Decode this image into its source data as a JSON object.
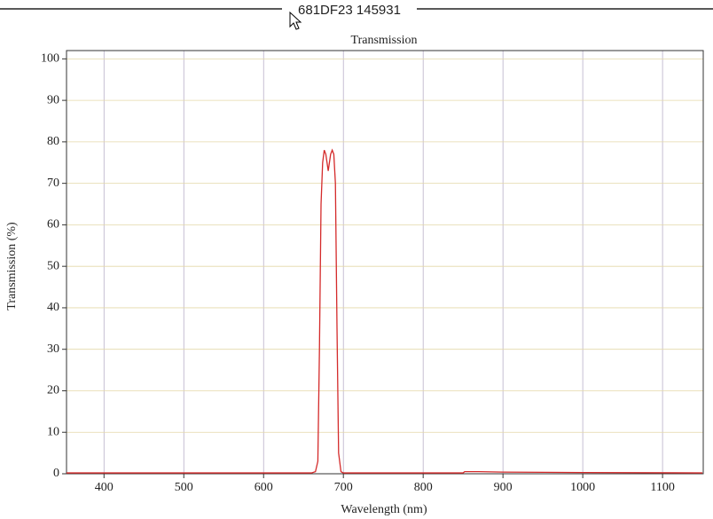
{
  "header": {
    "title": "681DF23 145931"
  },
  "chart_data": {
    "type": "line",
    "title": "Transmission",
    "x_label": "Wavelength (nm)",
    "y_label": "Transmission (%)",
    "x": [
      353,
      660,
      665,
      668,
      670,
      672,
      674,
      676,
      678,
      681,
      684,
      686,
      688,
      690,
      692,
      694,
      697,
      700,
      850,
      852,
      870,
      900,
      1000,
      1150
    ],
    "values": [
      0.2,
      0.2,
      0.5,
      3,
      30,
      65,
      75,
      78,
      77,
      73,
      77,
      78,
      77,
      70,
      35,
      5,
      0.5,
      0.2,
      0.2,
      0.5,
      0.5,
      0.4,
      0.3,
      0.2
    ],
    "color": "#d42a2a",
    "xlim": [
      353,
      1151
    ],
    "ylim": [
      0,
      102
    ],
    "xticks": [
      400,
      500,
      600,
      700,
      800,
      900,
      1000,
      1100
    ],
    "yticks": [
      0,
      10,
      20,
      30,
      40,
      50,
      60,
      70,
      80,
      90,
      100
    ],
    "grid": true
  }
}
